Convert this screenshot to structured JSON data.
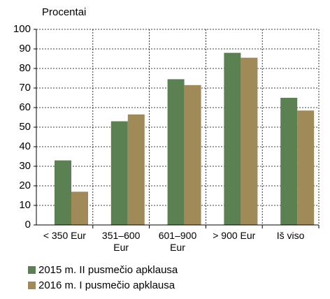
{
  "chart_data": {
    "type": "bar",
    "y_label": "Procentai",
    "categories": [
      "< 350 Eur",
      "351–600 Eur",
      "601–900 Eur",
      "> 900 Eur",
      "Iš viso"
    ],
    "series": [
      {
        "name": "2015 m. II pusmečio apklausa",
        "color": "#5b8052",
        "values": [
          33,
          53,
          74.5,
          88,
          65
        ]
      },
      {
        "name": "2016 m. I pusmečio apklausa",
        "color": "#a08b58",
        "values": [
          17,
          56.5,
          71.5,
          85.5,
          58.5
        ]
      }
    ],
    "ylim": [
      0,
      100
    ],
    "yticks": [
      0,
      10,
      20,
      30,
      40,
      50,
      60,
      70,
      80,
      90,
      100
    ],
    "grid": true
  }
}
